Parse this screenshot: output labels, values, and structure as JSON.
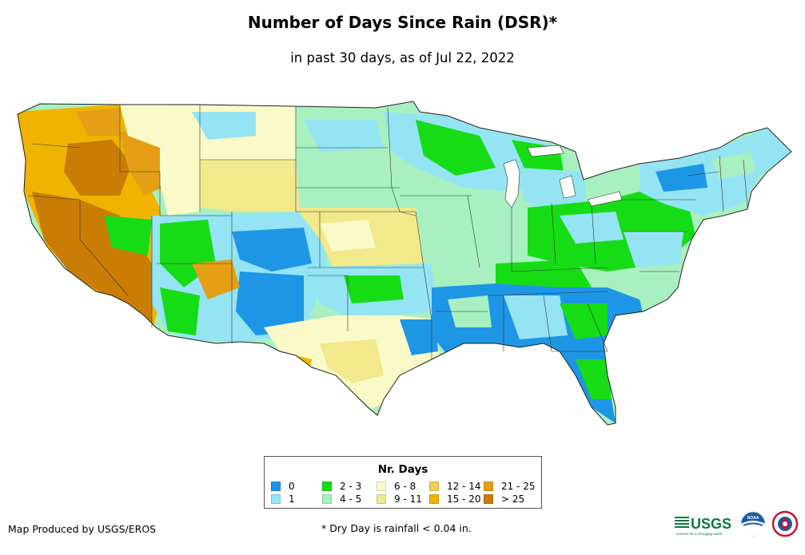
{
  "header": {
    "title": "Number of Days Since Rain (DSR)*",
    "subtitle": "in past 30 days, as of Jul 22, 2022"
  },
  "map": {
    "type": "choropleth",
    "region": "Contiguous United States",
    "colors": {
      "c0": "#1e96e6",
      "c1": "#94e4f4",
      "c23": "#16dc16",
      "c45": "#a8f0c0",
      "c68": "#fafac8",
      "c911": "#f2e88c",
      "c1214": "#f0cc5a",
      "c1520": "#f0b400",
      "c2125": "#e59f16",
      "c25": "#c97d05"
    }
  },
  "legend": {
    "title": "Nr. Days",
    "items": [
      {
        "label": "0",
        "color": "#1e96e6"
      },
      {
        "label": "1",
        "color": "#94e4f4"
      },
      {
        "label": "2 - 3",
        "color": "#16dc16"
      },
      {
        "label": "4 - 5",
        "color": "#a8f0c0"
      },
      {
        "label": "6 - 8",
        "color": "#fafac8"
      },
      {
        "label": "9 - 11",
        "color": "#f2e88c"
      },
      {
        "label": "12 - 14",
        "color": "#f0cc5a"
      },
      {
        "label": "15 - 20",
        "color": "#f0b400"
      },
      {
        "label": "21 - 25",
        "color": "#e59f16"
      },
      {
        "label": "> 25",
        "color": "#c97d05"
      }
    ]
  },
  "footer": {
    "credit": "Map Produced by USGS/EROS",
    "footnote": "* Dry Day is rainfall < 0.04 in.",
    "logos": {
      "usgs_text": "USGS",
      "usgs_tagline": "science for a changing world",
      "noaa_text": "NOAA"
    }
  }
}
